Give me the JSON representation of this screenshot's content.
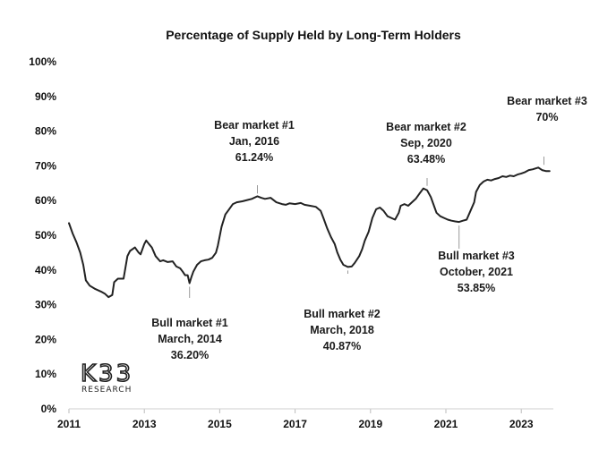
{
  "chart_data": {
    "type": "line",
    "title": "Percentage of Supply Held by Long-Term Holders",
    "xlabel": "",
    "ylabel": "",
    "xlim": [
      2011.0,
      2023.85
    ],
    "ylim": [
      0,
      100
    ],
    "x_ticks": [
      "2011",
      "2013",
      "2015",
      "2017",
      "2019",
      "2021",
      "2023"
    ],
    "y_ticks": [
      "0%",
      "10%",
      "20%",
      "30%",
      "40%",
      "50%",
      "60%",
      "70%",
      "80%",
      "90%",
      "100%"
    ],
    "grid": false,
    "legend": "none",
    "series": [
      {
        "name": "",
        "color": "#222222",
        "x": [
          2011.0,
          2011.1,
          2011.2,
          2011.3,
          2011.38,
          2011.45,
          2011.55,
          2011.7,
          2011.85,
          2011.95,
          2012.05,
          2012.15,
          2012.2,
          2012.3,
          2012.45,
          2012.55,
          2012.62,
          2012.75,
          2012.85,
          2012.9,
          2013.0,
          2013.05,
          2013.12,
          2013.2,
          2013.3,
          2013.42,
          2013.5,
          2013.62,
          2013.75,
          2013.85,
          2013.95,
          2014.02,
          2014.08,
          2014.15,
          2014.2,
          2014.25,
          2014.3,
          2014.4,
          2014.5,
          2014.6,
          2014.7,
          2014.8,
          2014.9,
          2014.95,
          2015.05,
          2015.15,
          2015.25,
          2015.35,
          2015.45,
          2015.6,
          2015.75,
          2015.85,
          2016.0,
          2016.1,
          2016.2,
          2016.35,
          2016.5,
          2016.65,
          2016.75,
          2016.85,
          2017.0,
          2017.15,
          2017.25,
          2017.4,
          2017.55,
          2017.68,
          2017.75,
          2017.85,
          2017.95,
          2018.05,
          2018.12,
          2018.2,
          2018.28,
          2018.4,
          2018.5,
          2018.58,
          2018.7,
          2018.78,
          2018.85,
          2018.95,
          2019.05,
          2019.15,
          2019.25,
          2019.35,
          2019.45,
          2019.55,
          2019.65,
          2019.75,
          2019.8,
          2019.9,
          2020.0,
          2020.1,
          2020.2,
          2020.3,
          2020.4,
          2020.5,
          2020.6,
          2020.7,
          2020.75,
          2020.85,
          2020.95,
          2021.05,
          2021.15,
          2021.25,
          2021.35,
          2021.45,
          2021.55,
          2021.65,
          2021.75,
          2021.8,
          2021.9,
          2022.0,
          2022.1,
          2022.2,
          2022.3,
          2022.4,
          2022.5,
          2022.6,
          2022.7,
          2022.8,
          2022.9,
          2023.0,
          2023.1,
          2023.2,
          2023.3,
          2023.45,
          2023.55,
          2023.65,
          2023.75
        ],
        "y": [
          53.5,
          50.5,
          48,
          45,
          41.5,
          37,
          35.5,
          34.5,
          33.8,
          33.2,
          32.2,
          32.8,
          36.5,
          37.5,
          37.5,
          44,
          45.5,
          46.5,
          45,
          44.5,
          47.5,
          48.5,
          47.5,
          46.5,
          44,
          42.5,
          42.8,
          42.3,
          42.5,
          41,
          40.5,
          39.5,
          38.5,
          38.5,
          36.2,
          38,
          39.5,
          41.5,
          42.5,
          42.8,
          43,
          43.5,
          45,
          47,
          52.5,
          56,
          57.5,
          59,
          59.5,
          59.8,
          60.2,
          60.5,
          61.24,
          60.8,
          60.5,
          60.8,
          59.5,
          59,
          58.8,
          59.2,
          59,
          59.3,
          58.8,
          58.5,
          58.2,
          57,
          55,
          52,
          49.5,
          47.5,
          45,
          43,
          41.5,
          40.87,
          41,
          42,
          44,
          46,
          48.5,
          51,
          55,
          57.5,
          58,
          57,
          55.5,
          55,
          54.5,
          56.5,
          58.5,
          59,
          58.5,
          59.5,
          60.5,
          62,
          63.48,
          63,
          61,
          58,
          56.5,
          55.5,
          55,
          54.5,
          54.2,
          54,
          53.85,
          54.2,
          54.5,
          57,
          59.5,
          62.5,
          64.5,
          65.5,
          66,
          65.8,
          66.2,
          66.5,
          67,
          66.8,
          67.2,
          67,
          67.5,
          67.8,
          68.2,
          68.8,
          69,
          69.5,
          68.8,
          68.5,
          68.5
        ]
      }
    ],
    "annotations": [
      {
        "lines": [
          "Bull market #1",
          "March, 2014",
          "36.20%"
        ],
        "x": 2014.2,
        "y": 36.2,
        "text_below": true
      },
      {
        "lines": [
          "Bear market #1",
          "Jan, 2016",
          "61.24%"
        ],
        "x": 2016.0,
        "y": 61.24,
        "text_below": false
      },
      {
        "lines": [
          "Bull market #2",
          "March, 2018",
          "40.87%"
        ],
        "x": 2018.4,
        "y": 40.87,
        "text_below": true
      },
      {
        "lines": [
          "Bear market #2",
          "Sep, 2020",
          "63.48%"
        ],
        "x": 2020.5,
        "y": 63.48,
        "text_below": false
      },
      {
        "lines": [
          "Bull market #3",
          "October, 2021",
          "53.85%"
        ],
        "x": 2021.35,
        "y": 53.85,
        "text_below": true
      },
      {
        "lines": [
          "Bear market #3",
          "70%"
        ],
        "x": 2023.6,
        "y": 69.5,
        "text_below": false
      }
    ]
  },
  "logo": {
    "main": "K33",
    "sub": "RESEARCH"
  }
}
